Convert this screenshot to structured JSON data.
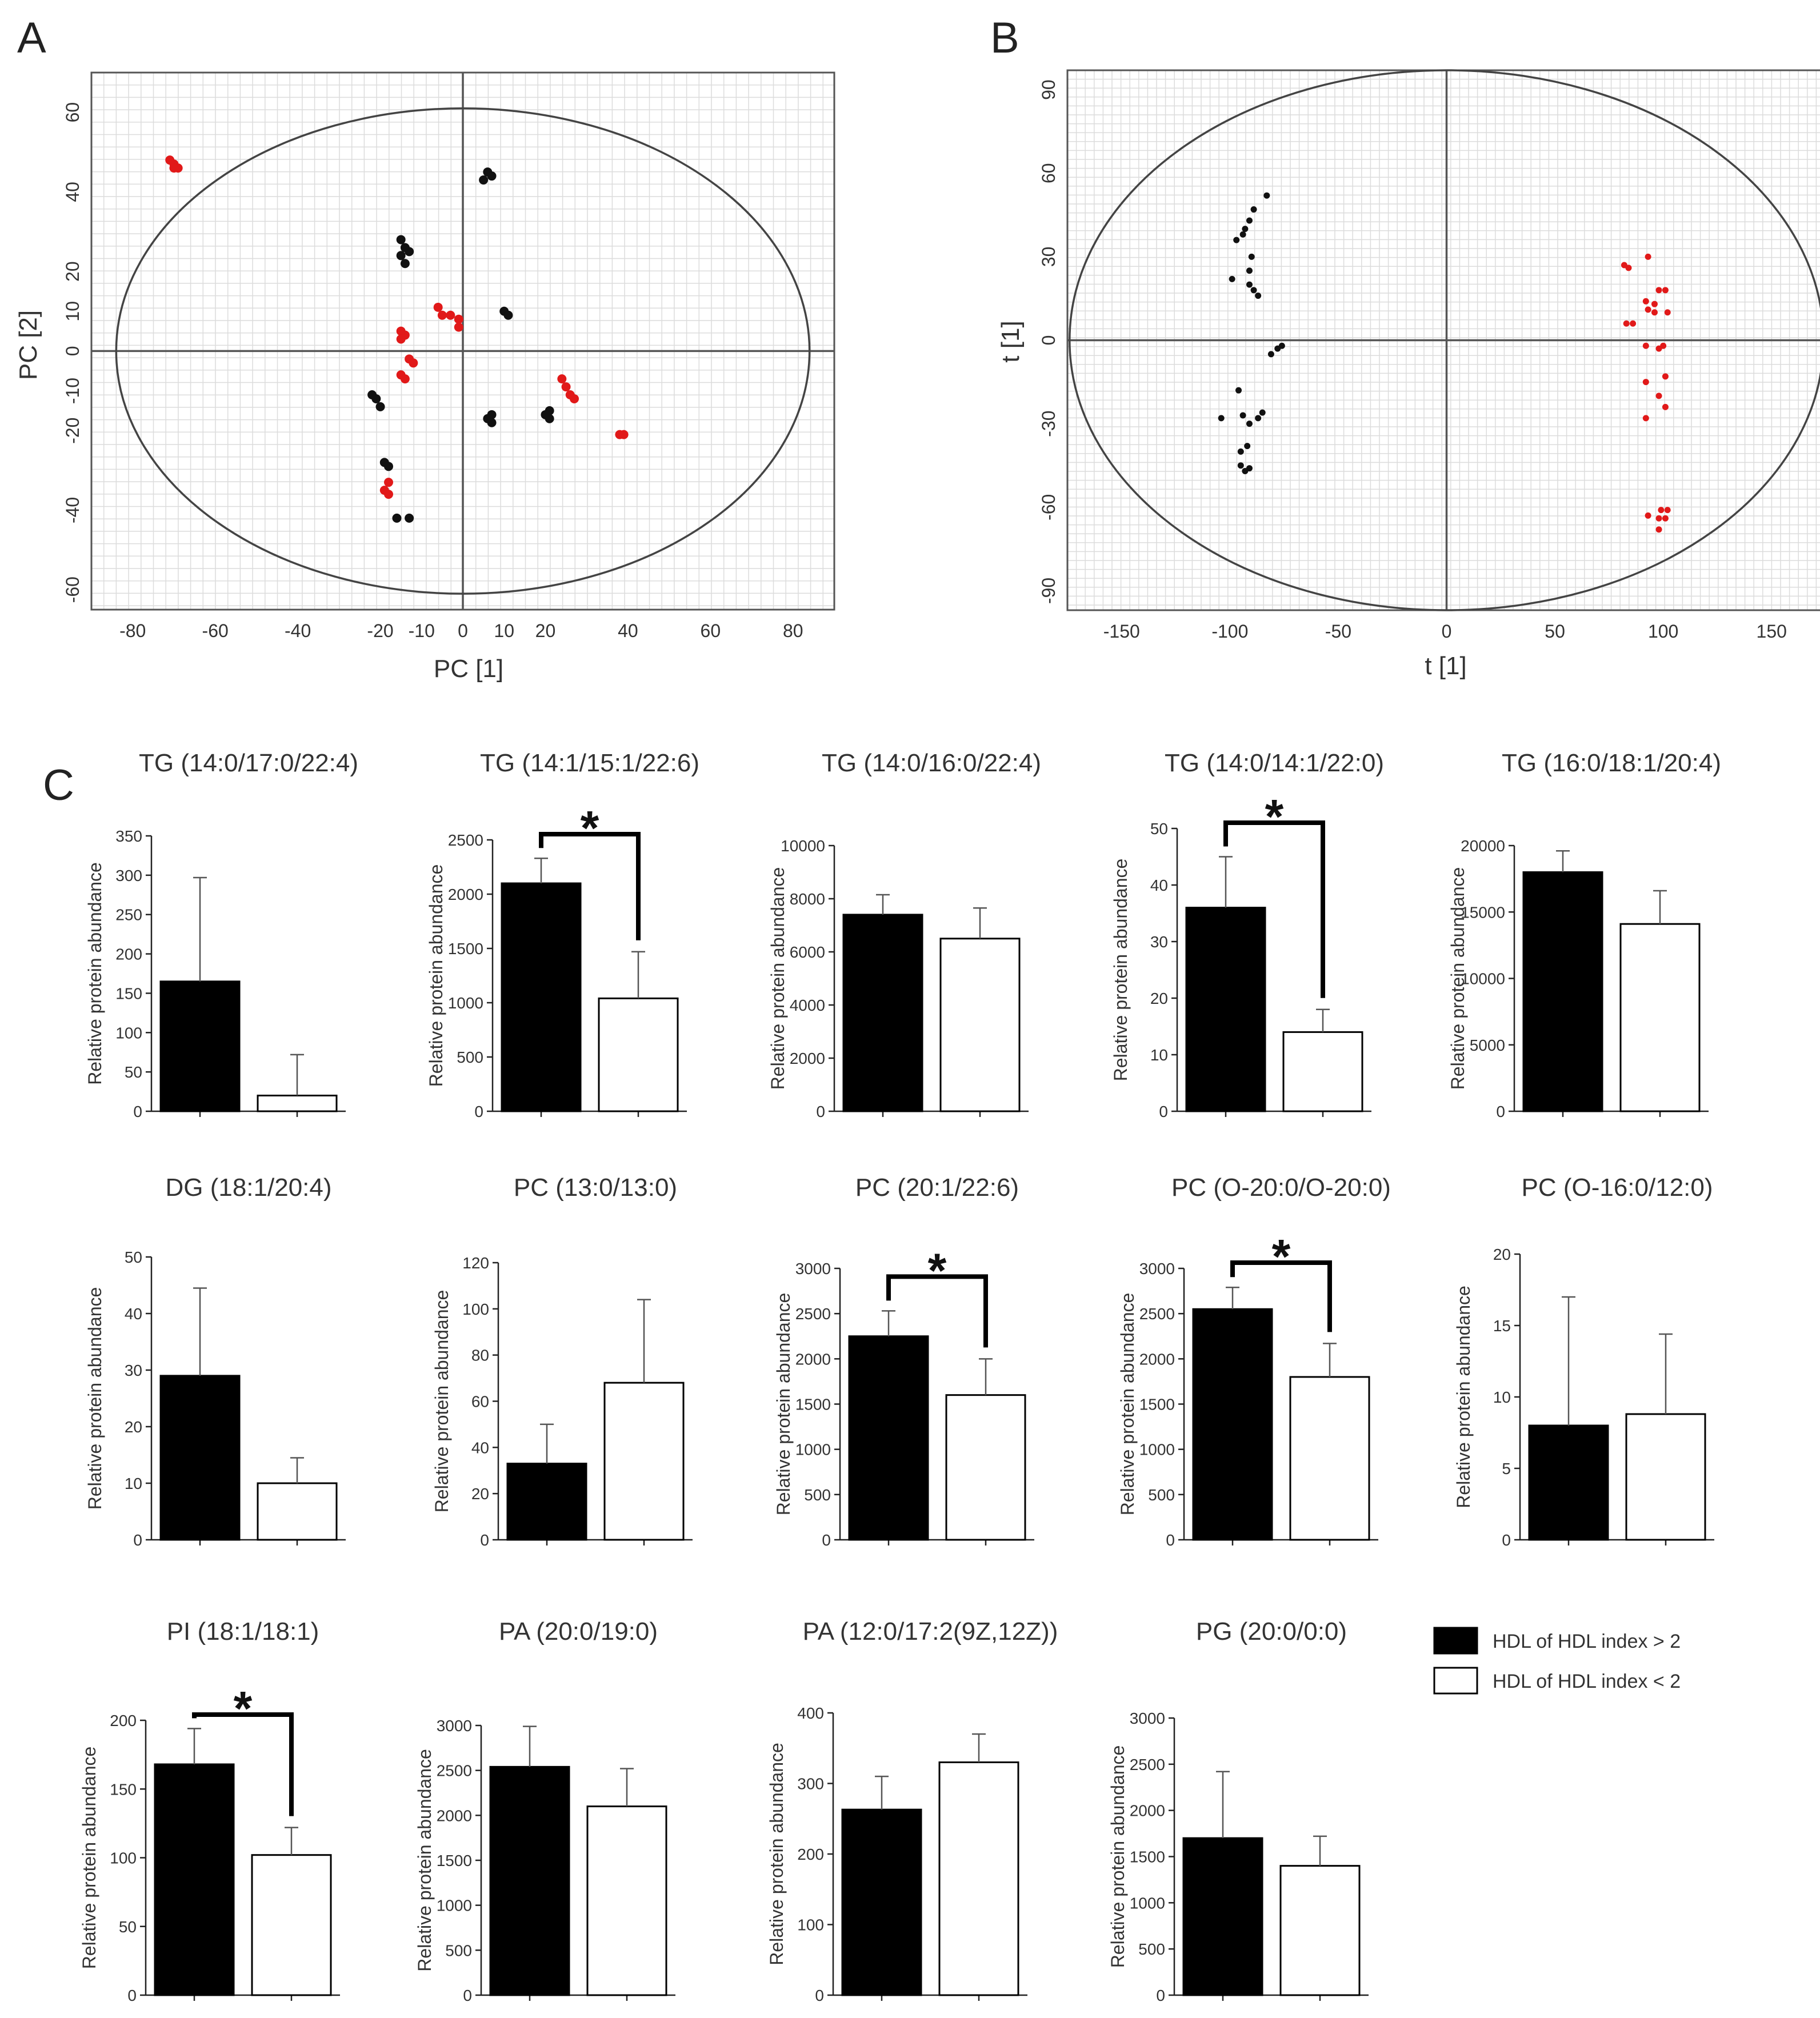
{
  "panels": {
    "a": "A",
    "b": "B",
    "c": "C"
  },
  "legend": {
    "high": "HDL of HDL index > 2",
    "low": "HDL of HDL index < 2",
    "colors": {
      "high": "#000000",
      "low": "#ffffff"
    }
  },
  "chart_data": [
    {
      "id": "A",
      "type": "scatter",
      "xlabel": "PC [1]",
      "ylabel": "PC [2]",
      "xlim": [
        -90,
        90
      ],
      "ylim": [
        -65,
        70
      ],
      "xticks": [
        -80,
        -60,
        -40,
        -20,
        -10,
        0,
        10,
        20,
        40,
        60,
        80
      ],
      "yticks": [
        -60,
        -40,
        -20,
        -10,
        0,
        10,
        20,
        40,
        60
      ],
      "ellipse": {
        "rx": 84,
        "ry": 61
      },
      "grid": true,
      "series": [
        {
          "name": "black",
          "color": "#111111",
          "points": [
            [
              5,
              43
            ],
            [
              6,
              45
            ],
            [
              7,
              44
            ],
            [
              -15,
              24
            ],
            [
              -14,
              26
            ],
            [
              -13,
              25
            ],
            [
              -15,
              28
            ],
            [
              -14,
              22
            ],
            [
              10,
              10
            ],
            [
              11,
              9
            ],
            [
              -21,
              -12
            ],
            [
              -20,
              -14
            ],
            [
              -22,
              -11
            ],
            [
              7,
              -16
            ],
            [
              7,
              -18
            ],
            [
              6,
              -17
            ],
            [
              20,
              -16
            ],
            [
              21,
              -17
            ],
            [
              21,
              -15
            ],
            [
              -19,
              -28
            ],
            [
              -18,
              -29
            ],
            [
              -16,
              -42
            ],
            [
              -13,
              -42
            ]
          ]
        },
        {
          "name": "red",
          "color": "#e11919",
          "points": [
            [
              -71,
              48
            ],
            [
              -70,
              47
            ],
            [
              -69,
              46
            ],
            [
              -70,
              46
            ],
            [
              -6,
              11
            ],
            [
              -5,
              9
            ],
            [
              -3,
              9
            ],
            [
              -1,
              8
            ],
            [
              -1,
              6
            ],
            [
              -15,
              5
            ],
            [
              -14,
              4
            ],
            [
              -15,
              3
            ],
            [
              -13,
              -2
            ],
            [
              -12,
              -3
            ],
            [
              -15,
              -6
            ],
            [
              -14,
              -7
            ],
            [
              24,
              -7
            ],
            [
              25,
              -9
            ],
            [
              26,
              -11
            ],
            [
              27,
              -12
            ],
            [
              38,
              -21
            ],
            [
              39,
              -21
            ],
            [
              -18,
              -33
            ],
            [
              -19,
              -35
            ],
            [
              -18,
              -36
            ]
          ]
        }
      ]
    },
    {
      "id": "B",
      "type": "scatter",
      "xlabel": "t [1]",
      "ylabel": "t [1]",
      "xlim": [
        -175,
        175
      ],
      "ylim": [
        -97,
        97
      ],
      "xticks": [
        -150,
        -100,
        -50,
        0,
        50,
        100,
        150
      ],
      "yticks": [
        -90,
        -60,
        -30,
        0,
        30,
        60,
        90
      ],
      "ellipse": {
        "rx": 174,
        "ry": 97
      },
      "grid": true,
      "series": [
        {
          "name": "black",
          "color": "#111111",
          "points": [
            [
              -83,
              52
            ],
            [
              -91,
              43
            ],
            [
              -89,
              47
            ],
            [
              -93,
              40
            ],
            [
              -97,
              36
            ],
            [
              -94,
              38
            ],
            [
              -90,
              30
            ],
            [
              -99,
              22
            ],
            [
              -91,
              25
            ],
            [
              -91,
              20
            ],
            [
              -89,
              18
            ],
            [
              -87,
              16
            ],
            [
              -76,
              -2
            ],
            [
              -78,
              -3
            ],
            [
              -81,
              -5
            ],
            [
              -96,
              -18
            ],
            [
              -94,
              -27
            ],
            [
              -87,
              -28
            ],
            [
              -91,
              -30
            ],
            [
              -85,
              -26
            ],
            [
              -104,
              -28
            ],
            [
              -92,
              -38
            ],
            [
              -95,
              -40
            ],
            [
              -95,
              -45
            ],
            [
              -91,
              -46
            ],
            [
              -93,
              -47
            ]
          ]
        },
        {
          "name": "red",
          "color": "#e11919",
          "points": [
            [
              93,
              30
            ],
            [
              84,
              26
            ],
            [
              82,
              27
            ],
            [
              98,
              18
            ],
            [
              101,
              18
            ],
            [
              92,
              14
            ],
            [
              96,
              13
            ],
            [
              93,
              11
            ],
            [
              96,
              10
            ],
            [
              102,
              10
            ],
            [
              83,
              6
            ],
            [
              86,
              6
            ],
            [
              92,
              -2
            ],
            [
              98,
              -3
            ],
            [
              100,
              -2
            ],
            [
              92,
              -15
            ],
            [
              101,
              -13
            ],
            [
              98,
              -20
            ],
            [
              101,
              -24
            ],
            [
              92,
              -28
            ],
            [
              99,
              -61
            ],
            [
              93,
              -63
            ],
            [
              98,
              -64
            ],
            [
              101,
              -64
            ],
            [
              102,
              -61
            ],
            [
              98,
              -68
            ]
          ]
        }
      ]
    },
    {
      "id": "C1",
      "type": "bar",
      "title": "TG (14:0/17:0/22:4)",
      "ylabel": "Relative protein abundance",
      "ylim": [
        0,
        350
      ],
      "yticks": [
        0,
        50,
        100,
        150,
        200,
        250,
        300,
        350
      ],
      "categories": [
        "HDL of HDL index > 2",
        "HDL of HDL index < 2"
      ],
      "values": [
        165,
        20
      ],
      "errors": [
        132,
        52
      ],
      "significant": false
    },
    {
      "id": "C2",
      "type": "bar",
      "title": "TG (14:1/15:1/22:6)",
      "ylabel": "Relative protein abundance",
      "ylim": [
        0,
        2500
      ],
      "yticks": [
        0,
        500,
        1000,
        1500,
        2000,
        2500
      ],
      "categories": [
        "HDL of HDL index > 2",
        "HDL of HDL index < 2"
      ],
      "values": [
        2100,
        1040
      ],
      "errors": [
        230,
        430
      ],
      "significant": true,
      "star": "*"
    },
    {
      "id": "C3",
      "type": "bar",
      "title": "TG (14:0/16:0/22:4)",
      "ylabel": "Relative protein abundance",
      "ylim": [
        0,
        10000
      ],
      "yticks": [
        0,
        2000,
        4000,
        6000,
        8000,
        10000
      ],
      "categories": [
        "HDL of HDL index > 2",
        "HDL of HDL index < 2"
      ],
      "values": [
        7400,
        6500
      ],
      "errors": [
        750,
        1150
      ],
      "significant": false
    },
    {
      "id": "C4",
      "type": "bar",
      "title": "TG (14:0/14:1/22:0)",
      "ylabel": "Relative protein abundance",
      "ylim": [
        0,
        50
      ],
      "yticks": [
        0,
        10,
        20,
        30,
        40,
        50
      ],
      "categories": [
        "HDL of HDL index > 2",
        "HDL of HDL index < 2"
      ],
      "values": [
        36,
        14
      ],
      "errors": [
        9,
        4
      ],
      "significant": true,
      "star": "*"
    },
    {
      "id": "C5",
      "type": "bar",
      "title": "TG (16:0/18:1/20:4)",
      "ylabel": "Relative protein abundance",
      "ylim": [
        0,
        20000
      ],
      "yticks": [
        0,
        5000,
        10000,
        15000,
        20000
      ],
      "categories": [
        "HDL of HDL index > 2",
        "HDL of HDL index < 2"
      ],
      "values": [
        18000,
        14100
      ],
      "errors": [
        1600,
        2500
      ],
      "significant": false
    },
    {
      "id": "C6",
      "type": "bar",
      "title": "DG (18:1/20:4)",
      "ylabel": "Relative protein abundance",
      "ylim": [
        0,
        50
      ],
      "yticks": [
        0,
        10,
        20,
        30,
        40,
        50
      ],
      "categories": [
        "HDL of HDL index > 2",
        "HDL of HDL index < 2"
      ],
      "values": [
        29,
        10
      ],
      "errors": [
        15.5,
        4.5
      ],
      "significant": false
    },
    {
      "id": "C7",
      "type": "bar",
      "title": "PC (13:0/13:0)",
      "ylabel": "Relative protein abundance",
      "ylim": [
        0,
        120
      ],
      "yticks": [
        0,
        20,
        40,
        60,
        80,
        100,
        120
      ],
      "categories": [
        "HDL of HDL index > 2",
        "HDL of HDL index < 2"
      ],
      "values": [
        33,
        68
      ],
      "errors": [
        17,
        36
      ],
      "significant": false
    },
    {
      "id": "C8",
      "type": "bar",
      "title": "PC (20:1/22:6)",
      "ylabel": "Relative protein abundance",
      "ylim": [
        0,
        3000
      ],
      "yticks": [
        0,
        500,
        1000,
        1500,
        2000,
        2500,
        3000
      ],
      "categories": [
        "HDL of HDL index > 2",
        "HDL of HDL index < 2"
      ],
      "values": [
        2250,
        1600
      ],
      "errors": [
        280,
        400
      ],
      "significant": true,
      "star": "*"
    },
    {
      "id": "C9",
      "type": "bar",
      "title": "PC (O-20:0/O-20:0)",
      "ylabel": "Relative protein abundance",
      "ylim": [
        0,
        3000
      ],
      "yticks": [
        0,
        500,
        1000,
        1500,
        2000,
        2500,
        3000
      ],
      "categories": [
        "HDL of HDL index > 2",
        "HDL of HDL index < 2"
      ],
      "values": [
        2550,
        1800
      ],
      "errors": [
        240,
        370
      ],
      "significant": true,
      "star": "*"
    },
    {
      "id": "C10",
      "type": "bar",
      "title": "PC (O-16:0/12:0)",
      "ylabel": "Relative protein abundance",
      "ylim": [
        0,
        20
      ],
      "yticks": [
        0,
        5,
        10,
        15,
        20
      ],
      "categories": [
        "HDL of HDL index > 2",
        "HDL of HDL index < 2"
      ],
      "values": [
        8,
        8.8
      ],
      "errors": [
        9,
        5.6
      ],
      "significant": false
    },
    {
      "id": "C11",
      "type": "bar",
      "title": "PI (18:1/18:1)",
      "ylabel": "Relative protein abundance",
      "ylim": [
        0,
        200
      ],
      "yticks": [
        0,
        50,
        100,
        150,
        200
      ],
      "categories": [
        "HDL of HDL index > 2",
        "HDL of HDL index < 2"
      ],
      "values": [
        168,
        102
      ],
      "errors": [
        26,
        20
      ],
      "significant": true,
      "star": "*"
    },
    {
      "id": "C12",
      "type": "bar",
      "title": "PA (20:0/19:0)",
      "ylabel": "Relative protein abundance",
      "ylim": [
        0,
        3000
      ],
      "yticks": [
        0,
        500,
        1000,
        1500,
        2000,
        2500,
        3000
      ],
      "categories": [
        "HDL of HDL index > 2",
        "HDL of HDL index < 2"
      ],
      "values": [
        2540,
        2100
      ],
      "errors": [
        450,
        420
      ],
      "significant": false
    },
    {
      "id": "C13",
      "type": "bar",
      "title": "PA (12:0/17:2(9Z,12Z))",
      "ylabel": "Relative protein abundance",
      "ylim": [
        0,
        400
      ],
      "yticks": [
        0,
        100,
        200,
        300,
        400
      ],
      "categories": [
        "HDL of HDL index > 2",
        "HDL of HDL index < 2"
      ],
      "values": [
        263,
        330
      ],
      "errors": [
        47,
        40
      ],
      "significant": false
    },
    {
      "id": "C14",
      "type": "bar",
      "title": "PG (20:0/0:0)",
      "ylabel": "Relative protein abundance",
      "ylim": [
        0,
        3000
      ],
      "yticks": [
        0,
        500,
        1000,
        1500,
        2000,
        2500,
        3000
      ],
      "categories": [
        "HDL of HDL index > 2",
        "HDL of HDL index < 2"
      ],
      "values": [
        1700,
        1400
      ],
      "errors": [
        720,
        320
      ],
      "significant": false
    }
  ]
}
